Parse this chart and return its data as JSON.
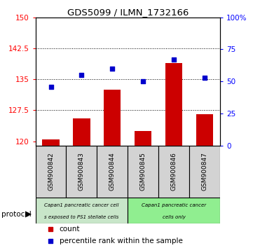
{
  "title": "GDS5099 / ILMN_1732166",
  "samples": [
    "GSM900842",
    "GSM900843",
    "GSM900844",
    "GSM900845",
    "GSM900846",
    "GSM900847"
  ],
  "counts": [
    120.5,
    125.5,
    132.5,
    122.5,
    139.0,
    126.5
  ],
  "percentile_ranks": [
    46,
    55,
    60,
    50,
    67,
    53
  ],
  "ylim_left": [
    119,
    150
  ],
  "ylim_right": [
    0,
    100
  ],
  "yticks_left": [
    120,
    127.5,
    135,
    142.5,
    150
  ],
  "yticks_right": [
    0,
    25,
    50,
    75,
    100
  ],
  "ytick_labels_left": [
    "120",
    "127.5",
    "135",
    "142.5",
    "150"
  ],
  "ytick_labels_right": [
    "0",
    "25",
    "50",
    "75",
    "100%"
  ],
  "bar_color": "#cc0000",
  "dot_color": "#0000cc",
  "protocol_group1_color": "#c8e6c9",
  "protocol_group2_color": "#90ee90",
  "protocol_group1_label_top": "Capan1 pancreatic cancer cell",
  "protocol_group1_label_bot": "s exposed to PS1 stellate cells",
  "protocol_group2_label_top": "Capan1 pancreatic cancer",
  "protocol_group2_label_bot": "cells only",
  "sample_box_color": "#d3d3d3",
  "background_color": "#ffffff",
  "bar_bottom": 119,
  "legend_count_label": "count",
  "legend_pct_label": "percentile rank within the sample"
}
